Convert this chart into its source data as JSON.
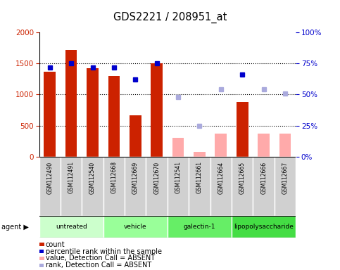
{
  "title": "GDS2221 / 208951_at",
  "samples": [
    "GSM112490",
    "GSM112491",
    "GSM112540",
    "GSM112668",
    "GSM112669",
    "GSM112670",
    "GSM112541",
    "GSM112661",
    "GSM112664",
    "GSM112665",
    "GSM112666",
    "GSM112667"
  ],
  "count_values": [
    1370,
    1720,
    1420,
    1300,
    660,
    1500,
    null,
    null,
    null,
    880,
    null,
    null
  ],
  "count_absent": [
    null,
    null,
    null,
    null,
    null,
    null,
    300,
    80,
    370,
    null,
    370,
    370
  ],
  "percentile_values": [
    72,
    75,
    72,
    72,
    62,
    75,
    null,
    null,
    null,
    66,
    null,
    null
  ],
  "percentile_absent": [
    null,
    null,
    null,
    null,
    null,
    null,
    48,
    25,
    54,
    null,
    54,
    51
  ],
  "ylim_left": [
    0,
    2000
  ],
  "ylim_right": [
    0,
    100
  ],
  "yticks_left": [
    0,
    500,
    1000,
    1500,
    2000
  ],
  "yticks_right": [
    0,
    25,
    50,
    75,
    100
  ],
  "bar_color_present": "#cc2200",
  "bar_color_absent": "#ffaaaa",
  "dot_color_present": "#0000cc",
  "dot_color_absent": "#aaaadd",
  "bar_width": 0.55,
  "agent_groups": [
    {
      "label": "untreated",
      "start": 0,
      "end": 2,
      "color": "#ccffcc"
    },
    {
      "label": "vehicle",
      "start": 3,
      "end": 5,
      "color": "#99ff99"
    },
    {
      "label": "galectin-1",
      "start": 6,
      "end": 8,
      "color": "#66ee66"
    },
    {
      "label": "lipopolysaccharide",
      "start": 9,
      "end": 11,
      "color": "#44dd44"
    }
  ],
  "sample_bg_color": "#d0d0d0",
  "legend_items": [
    {
      "color": "#cc2200",
      "kind": "rect",
      "label": "count"
    },
    {
      "color": "#0000cc",
      "kind": "square",
      "label": "percentile rank within the sample"
    },
    {
      "color": "#ffaaaa",
      "kind": "rect",
      "label": "value, Detection Call = ABSENT"
    },
    {
      "color": "#aaaadd",
      "kind": "square",
      "label": "rank, Detection Call = ABSENT"
    }
  ]
}
